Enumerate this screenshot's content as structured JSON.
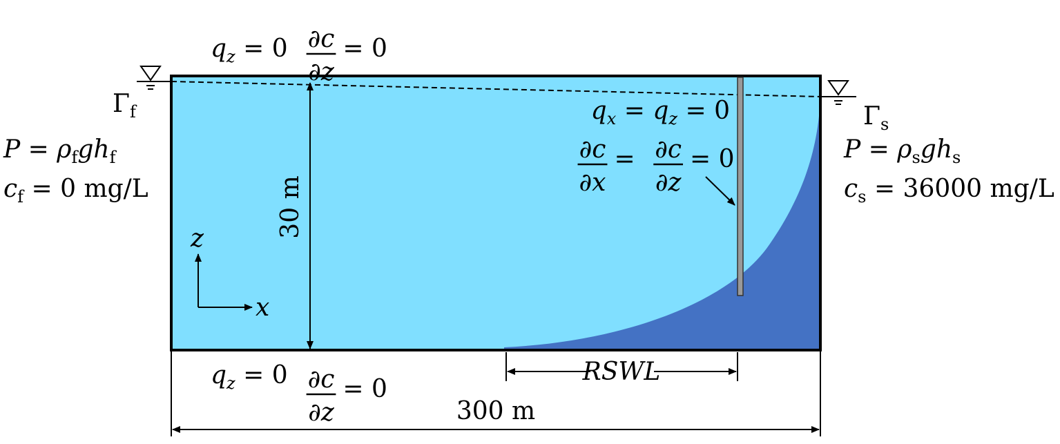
{
  "top_boundary": {
    "flux": [
      {
        "text": "q",
        "style": "italic"
      },
      {
        "text": "z",
        "style": "sub-italic"
      },
      {
        "text": " = 0",
        "style": "roman"
      }
    ],
    "gradient": {
      "numerator": "∂c",
      "denominator": "∂z",
      "rest": "= 0"
    }
  },
  "bottom_boundary": {
    "flux": [
      {
        "text": "q",
        "style": "italic"
      },
      {
        "text": "z",
        "style": "sub-italic"
      },
      {
        "text": " = 0",
        "style": "roman"
      }
    ],
    "gradient": {
      "numerator": "∂c",
      "denominator": "∂z",
      "rest": "= 0"
    }
  },
  "left_boundary": {
    "label": [
      {
        "text": "Γ",
        "style": "roman"
      },
      {
        "text": "f",
        "style": "sub-roman"
      }
    ],
    "pressure": [
      {
        "text": "P",
        "style": "italic"
      },
      {
        "text": " = ",
        "style": "roman"
      },
      {
        "text": "ρ",
        "style": "italic"
      },
      {
        "text": "f",
        "style": "sub-roman"
      },
      {
        "text": "gh",
        "style": "italic"
      },
      {
        "text": "f",
        "style": "sub-roman"
      }
    ],
    "concentration": [
      {
        "text": "c",
        "style": "italic"
      },
      {
        "text": "f",
        "style": "sub-roman"
      },
      {
        "text": " = 0 mg/L",
        "style": "roman"
      }
    ]
  },
  "right_boundary": {
    "label": [
      {
        "text": "Γ",
        "style": "roman"
      },
      {
        "text": "s",
        "style": "sub-roman"
      }
    ],
    "pressure": [
      {
        "text": "P",
        "style": "italic"
      },
      {
        "text": " = ",
        "style": "roman"
      },
      {
        "text": "ρ",
        "style": "italic"
      },
      {
        "text": "s",
        "style": "sub-roman"
      },
      {
        "text": "gh",
        "style": "italic"
      },
      {
        "text": "s",
        "style": "sub-roman"
      }
    ],
    "concentration": [
      {
        "text": "c",
        "style": "italic"
      },
      {
        "text": "s",
        "style": "sub-roman"
      },
      {
        "text": " = 36000 mg/L",
        "style": "roman"
      }
    ]
  },
  "well_boundary": {
    "flux": [
      {
        "text": "q",
        "style": "italic"
      },
      {
        "text": "x",
        "style": "sub-italic"
      },
      {
        "text": " = ",
        "style": "roman"
      },
      {
        "text": "q",
        "style": "italic"
      },
      {
        "text": "z",
        "style": "sub-italic"
      },
      {
        "text": " = 0",
        "style": "roman"
      }
    ],
    "gradient": {
      "terms": [
        {
          "numerator": "∂c",
          "denominator": "∂x"
        },
        {
          "numerator": "∂c",
          "denominator": "∂z"
        }
      ],
      "operators": [
        "=",
        "= 0"
      ]
    }
  },
  "dimensions": {
    "height": "30 m",
    "width": "300 m",
    "rswl": "RSWL"
  },
  "axes": {
    "z": "z",
    "x": "x"
  }
}
